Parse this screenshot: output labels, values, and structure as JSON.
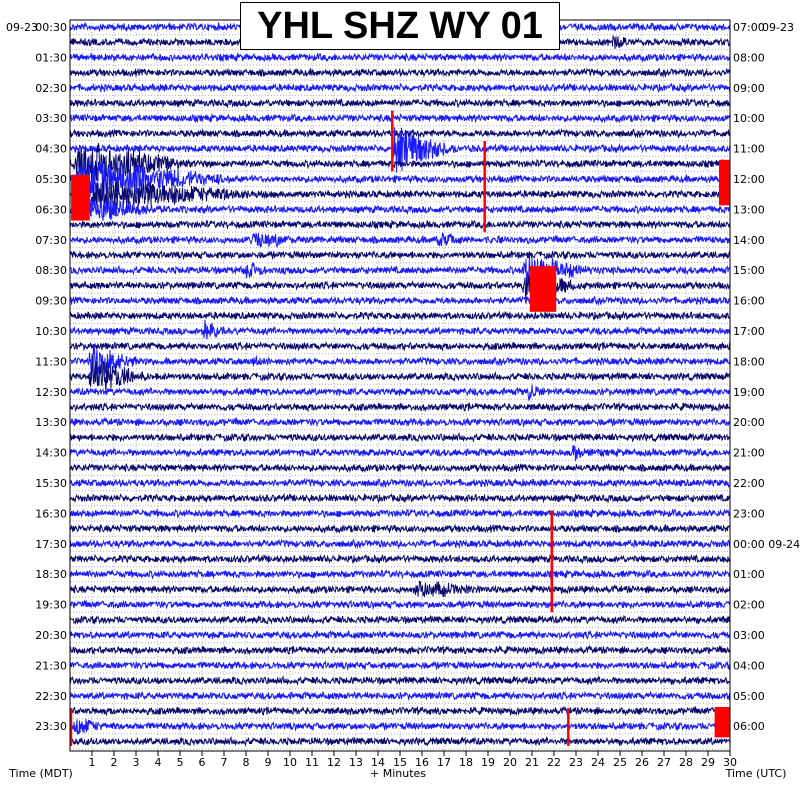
{
  "colors": {
    "trace_light": "#1a1aff",
    "trace_dark": "#0a0a6e",
    "clip": "#ff0000",
    "grid": "#b0b0b0",
    "background": "#ffffff"
  },
  "chart_data": {
    "type": "line",
    "title": "YHL SHZ WY 01",
    "xlabel_left": "Time (MDT)",
    "xlabel_center": "+ Minutes",
    "xlabel_right": "Time (UTC)",
    "xlim": [
      0,
      30
    ],
    "x_ticks": [
      "1",
      "2",
      "3",
      "4",
      "5",
      "6",
      "7",
      "8",
      "9",
      "10",
      "11",
      "12",
      "13",
      "14",
      "15",
      "16",
      "17",
      "18",
      "19",
      "20",
      "21",
      "22",
      "23",
      "24",
      "25",
      "26",
      "27",
      "28",
      "29",
      "30"
    ],
    "date_left": "09-23",
    "date_right": "09-23",
    "y_labels_left": [
      "00:30",
      "01:30",
      "02:30",
      "03:30",
      "04:30",
      "05:30",
      "06:30",
      "07:30",
      "08:30",
      "09:30",
      "10:30",
      "11:30",
      "12:30",
      "13:30",
      "14:30",
      "15:30",
      "16:30",
      "17:30",
      "18:30",
      "19:30",
      "20:30",
      "21:30",
      "22:30",
      "23:30"
    ],
    "y_labels_right": [
      "07:00",
      "08:00",
      "09:00",
      "10:00",
      "11:00",
      "12:00",
      "13:00",
      "14:00",
      "15:00",
      "16:00",
      "17:00",
      "18:00",
      "19:00",
      "20:00",
      "21:00",
      "22:00",
      "23:00",
      "00:00 09-24",
      "01:00",
      "02:00",
      "03:00",
      "04:00",
      "05:00",
      "06:00"
    ],
    "rows_per_hour": 2,
    "events": [
      {
        "row": 8,
        "start_min": 14.6,
        "end_min": 18.5,
        "amp": 30
      },
      {
        "row": 9,
        "start_min": 0.1,
        "end_min": 7.5,
        "amp": 30
      },
      {
        "row": 10,
        "start_min": 0.1,
        "end_min": 10,
        "amp": 28
      },
      {
        "row": 11,
        "start_min": 0.1,
        "end_min": 12,
        "amp": 24
      },
      {
        "row": 12,
        "start_min": 0.1,
        "end_min": 6,
        "amp": 20
      },
      {
        "row": 14,
        "start_min": 8.2,
        "end_min": 12,
        "amp": 12
      },
      {
        "row": 14,
        "start_min": 16.5,
        "end_min": 19.5,
        "amp": 10
      },
      {
        "row": 16,
        "start_min": 20.5,
        "end_min": 25,
        "amp": 22
      },
      {
        "row": 17,
        "start_min": 20.5,
        "end_min": 24.5,
        "amp": 22
      },
      {
        "row": 16,
        "start_min": 7.8,
        "end_min": 10,
        "amp": 12
      },
      {
        "row": 20,
        "start_min": 6,
        "end_min": 7.5,
        "amp": 16
      },
      {
        "row": 22,
        "start_min": 0.8,
        "end_min": 4.2,
        "amp": 24
      },
      {
        "row": 23,
        "start_min": 0.8,
        "end_min": 4.5,
        "amp": 26
      },
      {
        "row": 22,
        "start_min": 8.2,
        "end_min": 10,
        "amp": 8
      },
      {
        "row": 24,
        "start_min": 20.8,
        "end_min": 21.8,
        "amp": 14
      },
      {
        "row": 28,
        "start_min": 22.8,
        "end_min": 24,
        "amp": 12
      },
      {
        "row": 1,
        "start_min": 24.6,
        "end_min": 26.2,
        "amp": 10
      },
      {
        "row": 37,
        "start_min": 15.5,
        "end_min": 21,
        "amp": 12
      },
      {
        "row": 46,
        "start_min": 0.1,
        "end_min": 2.5,
        "amp": 14
      }
    ],
    "clips": [
      {
        "start_min": 0.05,
        "end_min": 0.9,
        "row_start": 10,
        "row_end": 13
      },
      {
        "start_min": 20.9,
        "end_min": 22.1,
        "row_start": 16,
        "row_end": 19
      },
      {
        "start_min": 29.5,
        "end_min": 30.0,
        "row_start": 9,
        "row_end": 12
      },
      {
        "start_min": 29.3,
        "end_min": 30.0,
        "row_start": 45,
        "row_end": 47
      }
    ],
    "clip_lines": [
      {
        "min": 14.65,
        "row_start": 5.5,
        "row_end": 9.5
      },
      {
        "min": 18.85,
        "row_start": 7.5,
        "row_end": 13.5
      },
      {
        "min": 21.9,
        "row_start": 31.8,
        "row_end": 38.5
      },
      {
        "min": 22.65,
        "row_start": 44.8,
        "row_end": 47.3
      },
      {
        "min": 0.0,
        "row_start": 44.8,
        "row_end": 47.3
      }
    ]
  }
}
